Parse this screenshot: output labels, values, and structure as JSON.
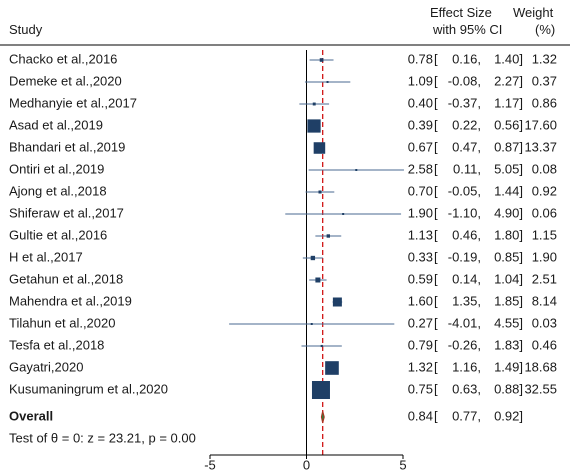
{
  "header": {
    "study": "Study",
    "effect_line1": "Effect Size",
    "effect_line2": "with 95% CI",
    "weight_line1": "Weight",
    "weight_line2": "(%)"
  },
  "colors": {
    "box": "#1f3f66",
    "ci": "#4a6a90",
    "null_line": "#000000",
    "overall_line": "#cc0000",
    "diamond_fill": "#2f7f3f",
    "diamond_stroke": "#b03020"
  },
  "chart_data": {
    "type": "forest",
    "xlim": [
      -5,
      5
    ],
    "xticks": [
      "-5",
      "0",
      "5"
    ],
    "null_value": 0,
    "overall_value": 0.84,
    "studies": [
      {
        "name": "Chacko et al.,2016",
        "es": 0.78,
        "lo": 0.16,
        "hi": 1.4,
        "es_text": "0.78",
        "lo_text": "0.16",
        "hi_text": "1.40",
        "weight": 1.32,
        "weight_text": "1.32"
      },
      {
        "name": "Demeke et al.,2020",
        "es": 1.09,
        "lo": -0.08,
        "hi": 2.27,
        "es_text": "1.09",
        "lo_text": "-0.08",
        "hi_text": "2.27",
        "weight": 0.37,
        "weight_text": "0.37"
      },
      {
        "name": "Medhanyie et al.,2017",
        "es": 0.4,
        "lo": -0.37,
        "hi": 1.17,
        "es_text": "0.40",
        "lo_text": "-0.37",
        "hi_text": "1.17",
        "weight": 0.86,
        "weight_text": "0.86"
      },
      {
        "name": "Asad et al.,2019",
        "es": 0.39,
        "lo": 0.22,
        "hi": 0.56,
        "es_text": "0.39",
        "lo_text": "0.22",
        "hi_text": "0.56",
        "weight": 17.6,
        "weight_text": "17.60"
      },
      {
        "name": "Bhandari et al.,2019",
        "es": 0.67,
        "lo": 0.47,
        "hi": 0.87,
        "es_text": "0.67",
        "lo_text": "0.47",
        "hi_text": "0.87",
        "weight": 13.37,
        "weight_text": "13.37"
      },
      {
        "name": "Ontiri et al.,2019",
        "es": 2.58,
        "lo": 0.11,
        "hi": 5.05,
        "es_text": "2.58",
        "lo_text": "0.11",
        "hi_text": "5.05",
        "weight": 0.08,
        "weight_text": "0.08"
      },
      {
        "name": "Ajong et al.,2018",
        "es": 0.7,
        "lo": -0.05,
        "hi": 1.44,
        "es_text": "0.70",
        "lo_text": "-0.05",
        "hi_text": "1.44",
        "weight": 0.92,
        "weight_text": "0.92"
      },
      {
        "name": "Shiferaw et al.,2017",
        "es": 1.9,
        "lo": -1.1,
        "hi": 4.9,
        "es_text": "1.90",
        "lo_text": "-1.10",
        "hi_text": "4.90",
        "weight": 0.06,
        "weight_text": "0.06"
      },
      {
        "name": "Gultie et al.,2016",
        "es": 1.13,
        "lo": 0.46,
        "hi": 1.8,
        "es_text": "1.13",
        "lo_text": "0.46",
        "hi_text": "1.80",
        "weight": 1.15,
        "weight_text": "1.15"
      },
      {
        "name": "H et al.,2017",
        "es": 0.33,
        "lo": -0.19,
        "hi": 0.85,
        "es_text": "0.33",
        "lo_text": "-0.19",
        "hi_text": "0.85",
        "weight": 1.9,
        "weight_text": "1.90"
      },
      {
        "name": "Getahun et al.,2018",
        "es": 0.59,
        "lo": 0.14,
        "hi": 1.04,
        "es_text": "0.59",
        "lo_text": "0.14",
        "hi_text": "1.04",
        "weight": 2.51,
        "weight_text": "2.51"
      },
      {
        "name": "Mahendra et al.,2019",
        "es": 1.6,
        "lo": 1.35,
        "hi": 1.85,
        "es_text": "1.60",
        "lo_text": "1.35",
        "hi_text": "1.85",
        "weight": 8.14,
        "weight_text": "8.14"
      },
      {
        "name": "Tilahun et al.,2020",
        "es": 0.27,
        "lo": -4.01,
        "hi": 4.55,
        "es_text": "0.27",
        "lo_text": "-4.01",
        "hi_text": "4.55",
        "weight": 0.03,
        "weight_text": "0.03"
      },
      {
        "name": "Tesfa et al.,2018",
        "es": 0.79,
        "lo": -0.26,
        "hi": 1.83,
        "es_text": "0.79",
        "lo_text": "-0.26",
        "hi_text": "1.83",
        "weight": 0.46,
        "weight_text": "0.46"
      },
      {
        "name": "Gayatri,2020",
        "es": 1.32,
        "lo": 1.16,
        "hi": 1.49,
        "es_text": "1.32",
        "lo_text": "1.16",
        "hi_text": "1.49",
        "weight": 18.68,
        "weight_text": "18.68"
      },
      {
        "name": "Kusumaningrum et al.,2020",
        "es": 0.75,
        "lo": 0.63,
        "hi": 0.88,
        "es_text": "0.75",
        "lo_text": "0.63",
        "hi_text": "0.88",
        "weight": 32.55,
        "weight_text": "32.55"
      }
    ],
    "overall": {
      "label": "Overall",
      "es": 0.84,
      "lo": 0.77,
      "hi": 0.92,
      "es_text": "0.84",
      "lo_text": "0.77",
      "hi_text": "0.92"
    },
    "test_text": "Test of θ = 0: z = 23.21, p = 0.00"
  }
}
